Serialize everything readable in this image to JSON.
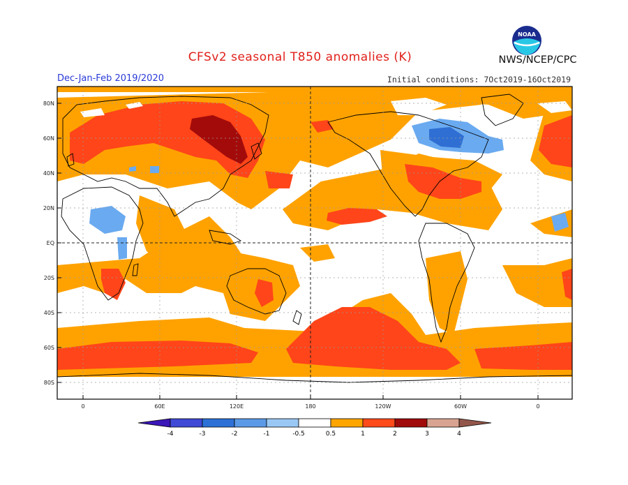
{
  "header": {
    "title": "CFSv2 seasonal T850 anomalies (K)",
    "period": "Dec-Jan-Feb 2019/2020",
    "initial_conditions": "Initial conditions: 7Oct2019-16Oct2019",
    "agency": "NWS/NCEP/CPC",
    "logo_text": "NOAA"
  },
  "axes": {
    "lat_labels": [
      "80N",
      "60N",
      "40N",
      "20N",
      "EQ",
      "20S",
      "40S",
      "60S",
      "80S"
    ],
    "lon_labels": [
      "0",
      "60E",
      "120E",
      "180",
      "120W",
      "60W",
      "0"
    ]
  },
  "legend": {
    "labels": [
      "-4",
      "-3",
      "-2",
      "-1",
      "-0.5",
      "0.5",
      "1",
      "2",
      "3",
      "4"
    ],
    "colors": [
      "#3b16b8",
      "#3f4ad6",
      "#2d71d6",
      "#5b9ae6",
      "#9ac8f4",
      "#ffffff",
      "#ffa500",
      "#ff4a1a",
      "#a10a0a",
      "#d8a491",
      "#93564a"
    ]
  },
  "map_colors": {
    "orange": "#ffa200",
    "red": "#ff4519",
    "darkred": "#a30b0b",
    "blue": "#6aaaf0",
    "darkblue": "#2f6fd4"
  }
}
